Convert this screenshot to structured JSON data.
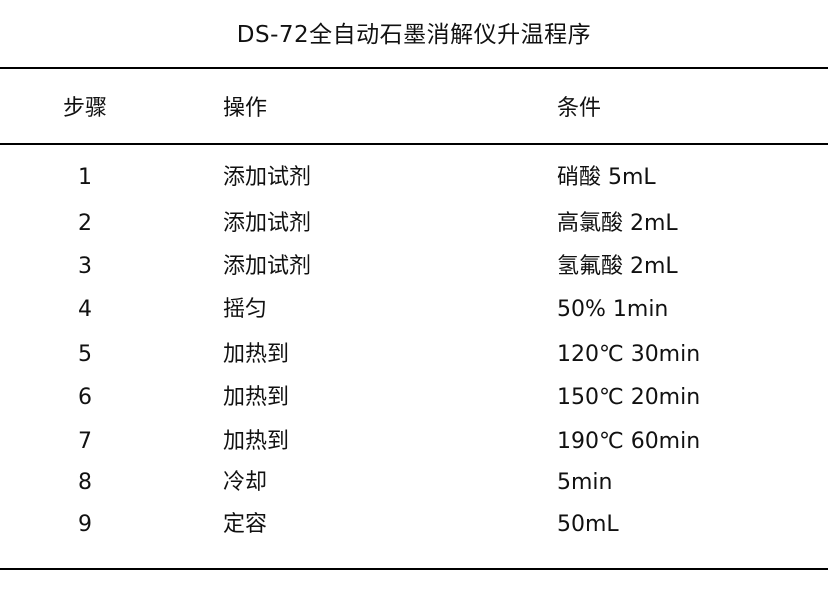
{
  "title": "DS-72全自动石墨消解仪升温程序",
  "table": {
    "headers": {
      "step": "步骤",
      "operation": "操作",
      "condition": "条件"
    },
    "rows": [
      {
        "step": "1",
        "operation": "添加试剂",
        "condition": "硝酸 5mL"
      },
      {
        "step": "2",
        "operation": "添加试剂",
        "condition": "高氯酸 2mL"
      },
      {
        "step": "3",
        "operation": "添加试剂",
        "condition": "氢氟酸 2mL"
      },
      {
        "step": "4",
        "operation": "摇匀",
        "condition": "50% 1min"
      },
      {
        "step": "5",
        "operation": "加热到",
        "condition": "120℃ 30min"
      },
      {
        "step": "6",
        "operation": "加热到",
        "condition": "150℃ 20min"
      },
      {
        "step": "7",
        "operation": "加热到",
        "condition": "190℃ 60min"
      },
      {
        "step": "8",
        "operation": "冷却",
        "condition": "5min"
      },
      {
        "step": "9",
        "operation": "定容",
        "condition": "50mL"
      }
    ]
  },
  "colors": {
    "background": "#ffffff",
    "text": "#111111",
    "divider": "#000000"
  }
}
